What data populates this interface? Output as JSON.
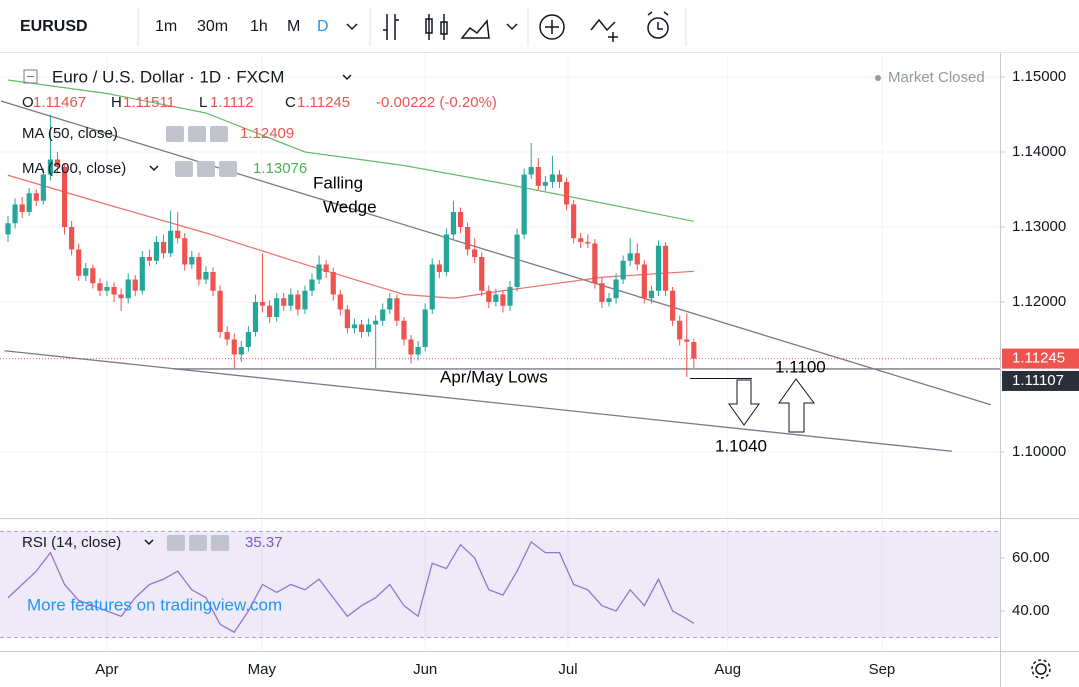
{
  "toolbar": {
    "symbol": "EURUSD",
    "intervals": [
      "1m",
      "30m",
      "1h",
      "M",
      "D"
    ]
  },
  "chart_data": {
    "type": "candlestick",
    "title": "Euro / U.S. Dollar · 1D · FXCM",
    "status": "Market Closed",
    "ohlc_prefixes": [
      "O",
      "H",
      "L",
      "C"
    ],
    "change": "-0.00222 (-0.20%)",
    "up_color": "#26a69a",
    "down_color": "#ef5350",
    "xlim": [
      -1.13,
      140.3
    ],
    "xticks": [
      {
        "value": 14,
        "label": "Apr"
      },
      {
        "value": 35.9,
        "label": "May"
      },
      {
        "value": 59,
        "label": "Jun"
      },
      {
        "value": 79.2,
        "label": "Jul"
      },
      {
        "value": 101.8,
        "label": "Aug"
      },
      {
        "value": 123.6,
        "label": "Sep"
      }
    ],
    "ylim": [
      1.09133,
      1.1532
    ],
    "yticks": [
      {
        "value": 1.15,
        "label": "1.15000"
      },
      {
        "value": 1.14,
        "label": "1.14000"
      },
      {
        "value": 1.13,
        "label": "1.13000"
      },
      {
        "value": 1.12,
        "label": "1.12000"
      },
      {
        "value": 1.1,
        "label": "1.10000"
      }
    ],
    "grid": true,
    "candles": [
      [
        1.129,
        1.1315,
        1.128,
        1.1305
      ],
      [
        1.1305,
        1.1338,
        1.1298,
        1.133
      ],
      [
        1.133,
        1.134,
        1.1312,
        1.132
      ],
      [
        1.132,
        1.1352,
        1.1315,
        1.1345
      ],
      [
        1.1345,
        1.135,
        1.1328,
        1.1335
      ],
      [
        1.1335,
        1.1378,
        1.133,
        1.137
      ],
      [
        1.137,
        1.145,
        1.1362,
        1.139
      ],
      [
        1.139,
        1.14,
        1.1372,
        1.138
      ],
      [
        1.138,
        1.1385,
        1.129,
        1.13
      ],
      [
        1.13,
        1.1308,
        1.1262,
        1.127
      ],
      [
        1.127,
        1.1278,
        1.1228,
        1.1235
      ],
      [
        1.1235,
        1.1252,
        1.1228,
        1.1245
      ],
      [
        1.1245,
        1.125,
        1.1218,
        1.1225
      ],
      [
        1.1225,
        1.1232,
        1.1208,
        1.1215
      ],
      [
        1.1215,
        1.1228,
        1.1208,
        1.122
      ],
      [
        1.122,
        1.1226,
        1.12,
        1.121
      ],
      [
        1.121,
        1.1218,
        1.1188,
        1.1205
      ],
      [
        1.1205,
        1.1238,
        1.1198,
        1.123
      ],
      [
        1.123,
        1.1236,
        1.1208,
        1.1215
      ],
      [
        1.1215,
        1.1268,
        1.121,
        1.126
      ],
      [
        1.126,
        1.127,
        1.1248,
        1.1255
      ],
      [
        1.1255,
        1.1288,
        1.125,
        1.128
      ],
      [
        1.128,
        1.129,
        1.1258,
        1.1265
      ],
      [
        1.1265,
        1.1322,
        1.126,
        1.1295
      ],
      [
        1.1295,
        1.132,
        1.1278,
        1.1285
      ],
      [
        1.1285,
        1.1292,
        1.1242,
        1.125
      ],
      [
        1.125,
        1.1268,
        1.1244,
        1.126
      ],
      [
        1.126,
        1.1266,
        1.1222,
        1.123
      ],
      [
        1.123,
        1.1248,
        1.1224,
        1.124
      ],
      [
        1.124,
        1.1246,
        1.1208,
        1.1215
      ],
      [
        1.1215,
        1.1222,
        1.1152,
        1.116
      ],
      [
        1.116,
        1.1168,
        1.1142,
        1.115
      ],
      [
        1.115,
        1.1158,
        1.1112,
        1.113
      ],
      [
        1.113,
        1.1148,
        1.112,
        1.114
      ],
      [
        1.114,
        1.1168,
        1.1134,
        1.116
      ],
      [
        1.116,
        1.121,
        1.1154,
        1.12
      ],
      [
        1.12,
        1.1265,
        1.1186,
        1.1195
      ],
      [
        1.1195,
        1.1202,
        1.1172,
        1.118
      ],
      [
        1.118,
        1.1212,
        1.1174,
        1.1205
      ],
      [
        1.1205,
        1.1212,
        1.1188,
        1.1195
      ],
      [
        1.1195,
        1.1218,
        1.1188,
        1.121
      ],
      [
        1.121,
        1.1216,
        1.1182,
        1.119
      ],
      [
        1.119,
        1.1222,
        1.1184,
        1.1215
      ],
      [
        1.1215,
        1.1238,
        1.1208,
        1.123
      ],
      [
        1.123,
        1.1262,
        1.1224,
        1.125
      ],
      [
        1.125,
        1.1256,
        1.1232,
        1.124
      ],
      [
        1.124,
        1.1246,
        1.1202,
        1.121
      ],
      [
        1.121,
        1.1216,
        1.1182,
        1.119
      ],
      [
        1.119,
        1.1196,
        1.1158,
        1.1165
      ],
      [
        1.1165,
        1.1178,
        1.1158,
        1.117
      ],
      [
        1.117,
        1.1176,
        1.1152,
        1.116
      ],
      [
        1.116,
        1.1178,
        1.1154,
        1.117
      ],
      [
        1.117,
        1.1182,
        1.1112,
        1.1175
      ],
      [
        1.1175,
        1.1198,
        1.1168,
        1.119
      ],
      [
        1.119,
        1.1212,
        1.1184,
        1.1205
      ],
      [
        1.1205,
        1.121,
        1.1168,
        1.1175
      ],
      [
        1.1175,
        1.118,
        1.1142,
        1.115
      ],
      [
        1.115,
        1.1156,
        1.1118,
        1.113
      ],
      [
        1.113,
        1.1148,
        1.1122,
        1.114
      ],
      [
        1.114,
        1.1198,
        1.1134,
        1.119
      ],
      [
        1.119,
        1.1258,
        1.1184,
        1.125
      ],
      [
        1.125,
        1.1256,
        1.1232,
        1.124
      ],
      [
        1.124,
        1.1298,
        1.1234,
        1.129
      ],
      [
        1.129,
        1.1335,
        1.1284,
        1.132
      ],
      [
        1.132,
        1.1326,
        1.1292,
        1.13
      ],
      [
        1.13,
        1.1306,
        1.1262,
        1.127
      ],
      [
        1.127,
        1.1285,
        1.1252,
        1.126
      ],
      [
        1.126,
        1.1266,
        1.1208,
        1.1215
      ],
      [
        1.1215,
        1.1222,
        1.1192,
        1.12
      ],
      [
        1.12,
        1.1218,
        1.1194,
        1.121
      ],
      [
        1.121,
        1.1216,
        1.1186,
        1.1195
      ],
      [
        1.1195,
        1.1228,
        1.1188,
        1.122
      ],
      [
        1.122,
        1.1298,
        1.1214,
        1.129
      ],
      [
        1.129,
        1.1378,
        1.1284,
        1.137
      ],
      [
        1.137,
        1.1412,
        1.1364,
        1.138
      ],
      [
        1.138,
        1.1392,
        1.1348,
        1.1355
      ],
      [
        1.1355,
        1.1368,
        1.1348,
        1.136
      ],
      [
        1.136,
        1.1395,
        1.1352,
        1.137
      ],
      [
        1.137,
        1.1376,
        1.1352,
        1.136
      ],
      [
        1.136,
        1.1366,
        1.1322,
        1.133
      ],
      [
        1.133,
        1.1336,
        1.1278,
        1.1285
      ],
      [
        1.1285,
        1.1292,
        1.1272,
        1.128
      ],
      [
        1.128,
        1.129,
        1.1272,
        1.1278
      ],
      [
        1.1278,
        1.1284,
        1.1218,
        1.1225
      ],
      [
        1.1225,
        1.1232,
        1.1192,
        1.12
      ],
      [
        1.12,
        1.1212,
        1.1194,
        1.1205
      ],
      [
        1.1205,
        1.1238,
        1.1198,
        1.123
      ],
      [
        1.123,
        1.1262,
        1.1224,
        1.1255
      ],
      [
        1.1255,
        1.1285,
        1.1248,
        1.1265
      ],
      [
        1.1265,
        1.1278,
        1.1242,
        1.125
      ],
      [
        1.125,
        1.1256,
        1.1198,
        1.1205
      ],
      [
        1.1205,
        1.1222,
        1.1198,
        1.1215
      ],
      [
        1.1215,
        1.1282,
        1.1208,
        1.1275
      ],
      [
        1.1275,
        1.128,
        1.1208,
        1.1215
      ],
      [
        1.1215,
        1.122,
        1.1168,
        1.1175
      ],
      [
        1.1175,
        1.1182,
        1.1142,
        1.115
      ],
      [
        1.115,
        1.1185,
        1.11,
        1.1147
      ],
      [
        1.11467,
        1.11511,
        1.1112,
        1.11245
      ]
    ],
    "series": [
      {
        "name": "MA (50, close)",
        "color": "#ef6f6c",
        "x": [
          0,
          14,
          28,
          42,
          56,
          63,
          70,
          84,
          97
        ],
        "values": [
          1.1369,
          1.133,
          1.1292,
          1.125,
          1.121,
          1.1205,
          1.1215,
          1.1233,
          1.12409
        ]
      },
      {
        "name": "MA (200, close)",
        "color": "#66bb6a",
        "x": [
          0,
          14,
          28,
          42,
          56,
          70,
          84,
          97
        ],
        "values": [
          1.1496,
          1.1478,
          1.1452,
          1.14,
          1.1382,
          1.1358,
          1.1332,
          1.13076
        ]
      }
    ],
    "drawings": [
      {
        "x": [
          -1,
          139
        ],
        "y": [
          1.1468,
          1.1063
        ]
      },
      {
        "x": [
          -0.5,
          133.5
        ],
        "y": [
          1.1135,
          1.1001
        ]
      },
      {
        "x": [
          23.5,
          140.3
        ],
        "y": [
          1.11107,
          1.11107
        ]
      }
    ],
    "annotations": [
      "Falling",
      "Wedge",
      "Apr/May Lows",
      "1.1100",
      "1.1040"
    ],
    "watermark": "More features on tradingview.com",
    "rsi": {
      "name": "RSI (14, close)",
      "color": "#9575cd",
      "ylim": [
        25.3,
        74.3
      ],
      "yticks": [
        {
          "value": 60,
          "label": "60.00"
        },
        {
          "value": 40,
          "label": "40.00"
        }
      ],
      "band": [
        30,
        70
      ],
      "x": [
        0,
        2,
        4,
        6,
        8,
        10,
        12,
        14,
        16,
        18,
        20,
        22,
        24,
        26,
        28,
        30,
        32,
        34,
        36,
        38,
        40,
        42,
        44,
        46,
        48,
        50,
        52,
        54,
        56,
        58,
        60,
        62,
        64,
        66,
        68,
        70,
        72,
        74,
        76,
        78,
        80,
        82,
        84,
        86,
        88,
        90,
        92,
        94,
        96,
        97
      ],
      "values": [
        45,
        50,
        55,
        62,
        50,
        44,
        42,
        40,
        38,
        45,
        50,
        52,
        55,
        48,
        45,
        35,
        32,
        40,
        50,
        47,
        50,
        48,
        52,
        45,
        38,
        42,
        45,
        50,
        42,
        38,
        58,
        56,
        65,
        60,
        48,
        46,
        55,
        66,
        62,
        62,
        50,
        48,
        42,
        40,
        48,
        42,
        52,
        40,
        37,
        35.37
      ]
    }
  }
}
